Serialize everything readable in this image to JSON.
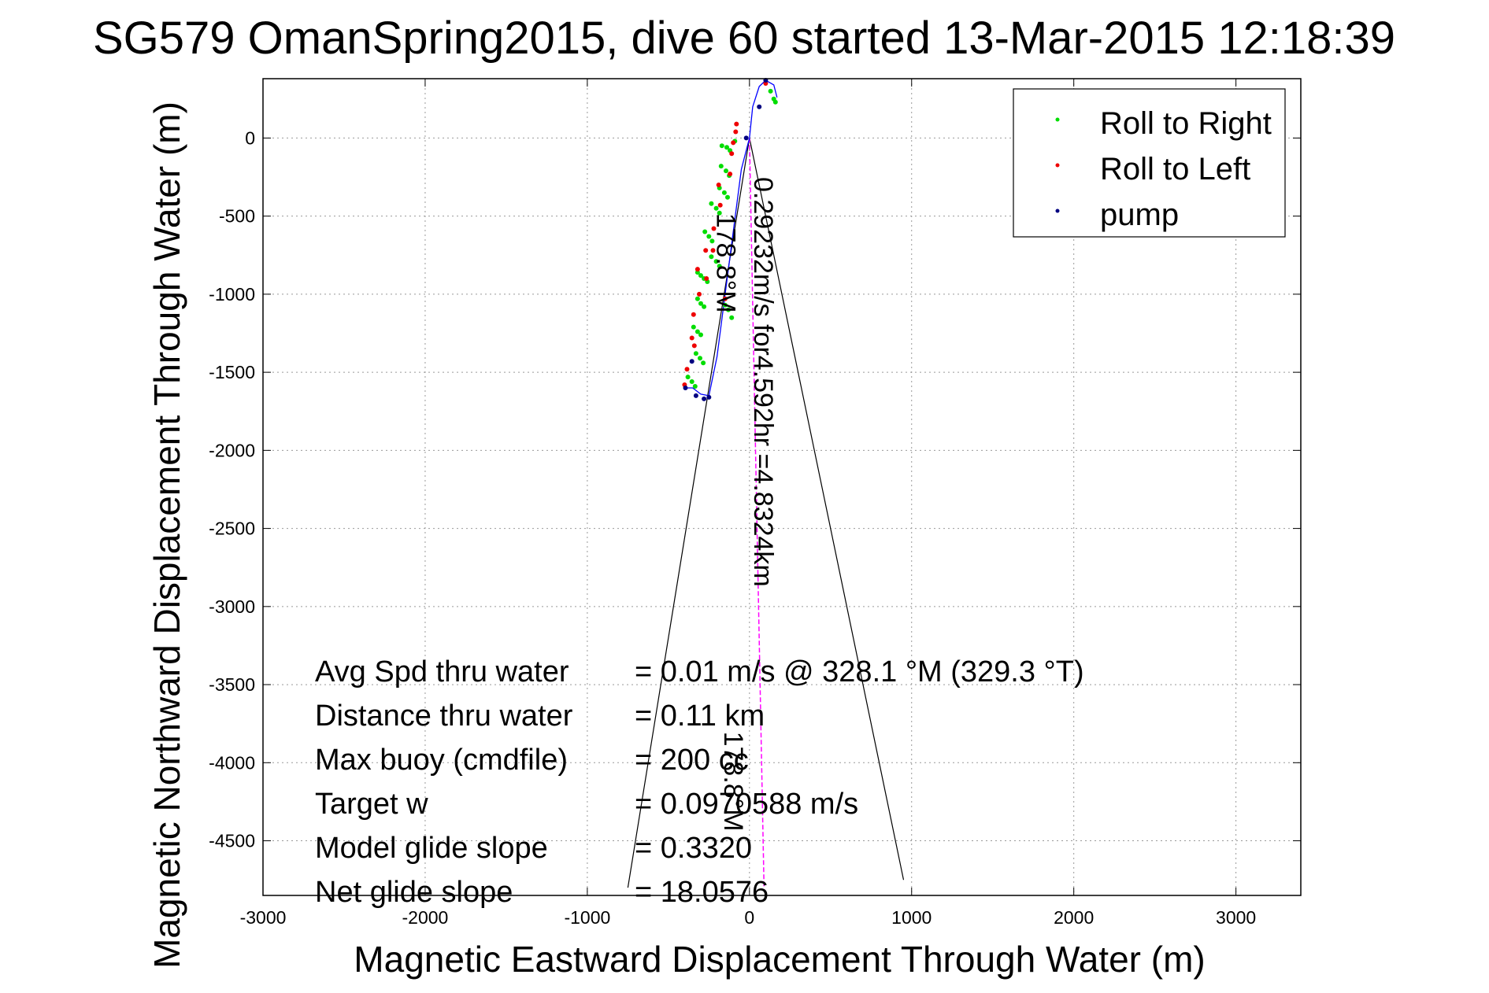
{
  "chart_data": {
    "type": "scatter",
    "title": "SG579 OmanSpring2015, dive 60 started 13-Mar-2015 12:18:39",
    "xlabel": "Magnetic Eastward Displacement Through Water (m)",
    "ylabel": "Magnetic Northward Displacement Through Water (m)",
    "xlim": [
      -3000,
      3400
    ],
    "ylim": [
      -4850,
      380
    ],
    "grid": true,
    "xticks": [
      -3000,
      -2000,
      -1000,
      0,
      1000,
      2000,
      3000
    ],
    "yticks": [
      0,
      -500,
      -1000,
      -1500,
      -2000,
      -2500,
      -3000,
      -3500,
      -4000,
      -4500
    ],
    "legend_position": "top-right",
    "colors": {
      "roll_right": "#00dd00",
      "roll_left": "#ee0000",
      "pump": "#000080",
      "track": "#0000ff",
      "heading_line": "#ff00ff",
      "cone": "#000000"
    },
    "series": [
      {
        "name": "Roll to Right",
        "key": "roll_right",
        "points": [
          [
            -170,
            -50
          ],
          [
            -140,
            -60
          ],
          [
            -120,
            -80
          ],
          [
            -90,
            -20
          ],
          [
            -175,
            -180
          ],
          [
            -145,
            -210
          ],
          [
            -125,
            -240
          ],
          [
            -185,
            -320
          ],
          [
            -155,
            -350
          ],
          [
            -135,
            -380
          ],
          [
            -235,
            -420
          ],
          [
            -205,
            -450
          ],
          [
            -185,
            -480
          ],
          [
            -275,
            -600
          ],
          [
            -250,
            -630
          ],
          [
            -230,
            -660
          ],
          [
            -235,
            -760
          ],
          [
            -205,
            -790
          ],
          [
            -185,
            -820
          ],
          [
            -320,
            -860
          ],
          [
            -300,
            -880
          ],
          [
            -280,
            -900
          ],
          [
            -260,
            -920
          ],
          [
            -320,
            -1030
          ],
          [
            -300,
            -1060
          ],
          [
            -280,
            -1080
          ],
          [
            -345,
            -1210
          ],
          [
            -320,
            -1240
          ],
          [
            -300,
            -1260
          ],
          [
            -330,
            -1380
          ],
          [
            -305,
            -1410
          ],
          [
            -285,
            -1440
          ],
          [
            -380,
            -1530
          ],
          [
            -355,
            -1560
          ],
          [
            -335,
            -1590
          ],
          [
            -150,
            -1070
          ],
          [
            -130,
            -1100
          ],
          [
            -110,
            -1150
          ],
          [
            150,
            250
          ],
          [
            160,
            230
          ],
          [
            130,
            300
          ]
        ]
      },
      {
        "name": "Roll to Left",
        "key": "roll_left",
        "points": [
          [
            -85,
            40
          ],
          [
            -80,
            90
          ],
          [
            -100,
            -30
          ],
          [
            -110,
            -100
          ],
          [
            -120,
            -230
          ],
          [
            -190,
            -300
          ],
          [
            -180,
            -430
          ],
          [
            -220,
            -580
          ],
          [
            -270,
            -720
          ],
          [
            -225,
            -720
          ],
          [
            -320,
            -840
          ],
          [
            -265,
            -900
          ],
          [
            -310,
            -1000
          ],
          [
            -345,
            -1130
          ],
          [
            -355,
            -1280
          ],
          [
            -340,
            -1330
          ],
          [
            -385,
            -1480
          ],
          [
            -400,
            -1580
          ],
          [
            -150,
            -1030
          ],
          [
            100,
            350
          ]
        ]
      },
      {
        "name": "pump",
        "key": "pump",
        "points": [
          [
            -395,
            -1600
          ],
          [
            -330,
            -1650
          ],
          [
            -280,
            -1670
          ],
          [
            -250,
            -1660
          ],
          [
            -355,
            -1430
          ],
          [
            -20,
            0
          ],
          [
            60,
            200
          ],
          [
            100,
            370
          ]
        ]
      }
    ],
    "track": [
      [
        0,
        0
      ],
      [
        -50,
        -200
      ],
      [
        -100,
        -600
      ],
      [
        -150,
        -1000
      ],
      [
        -200,
        -1400
      ],
      [
        -250,
        -1650
      ],
      [
        -300,
        -1640
      ],
      [
        -350,
        -1600
      ],
      [
        -395,
        -1600
      ]
    ],
    "track2": [
      [
        0,
        0
      ],
      [
        20,
        200
      ],
      [
        60,
        330
      ],
      [
        100,
        370
      ],
      [
        150,
        340
      ],
      [
        170,
        260
      ]
    ],
    "heading_line": [
      [
        0,
        0
      ],
      [
        90,
        -4800
      ]
    ],
    "cone": [
      [
        -750,
        -4800
      ],
      [
        0,
        0
      ],
      [
        950,
        -4750
      ]
    ],
    "annotations": {
      "speed_line": "0.29232m/s for4.592hr =4.8324km",
      "heading_near": "178.8°M",
      "heading_far": "178.8°M"
    },
    "stats": [
      {
        "label": "Avg Spd thru water",
        "value": "=  0.01 m/s @ 328.1 °M (329.3 °T)"
      },
      {
        "label": "Distance thru water",
        "value": "=  0.11 km"
      },
      {
        "label": "Max buoy (cmdfile)",
        "value": "= 200 cc"
      },
      {
        "label": "Target w",
        "value": "= 0.0970588 m/s"
      },
      {
        "label": "Model glide slope",
        "value": "= 0.3320"
      },
      {
        "label": "Net glide slope",
        "value": "= 18.0576"
      }
    ]
  }
}
